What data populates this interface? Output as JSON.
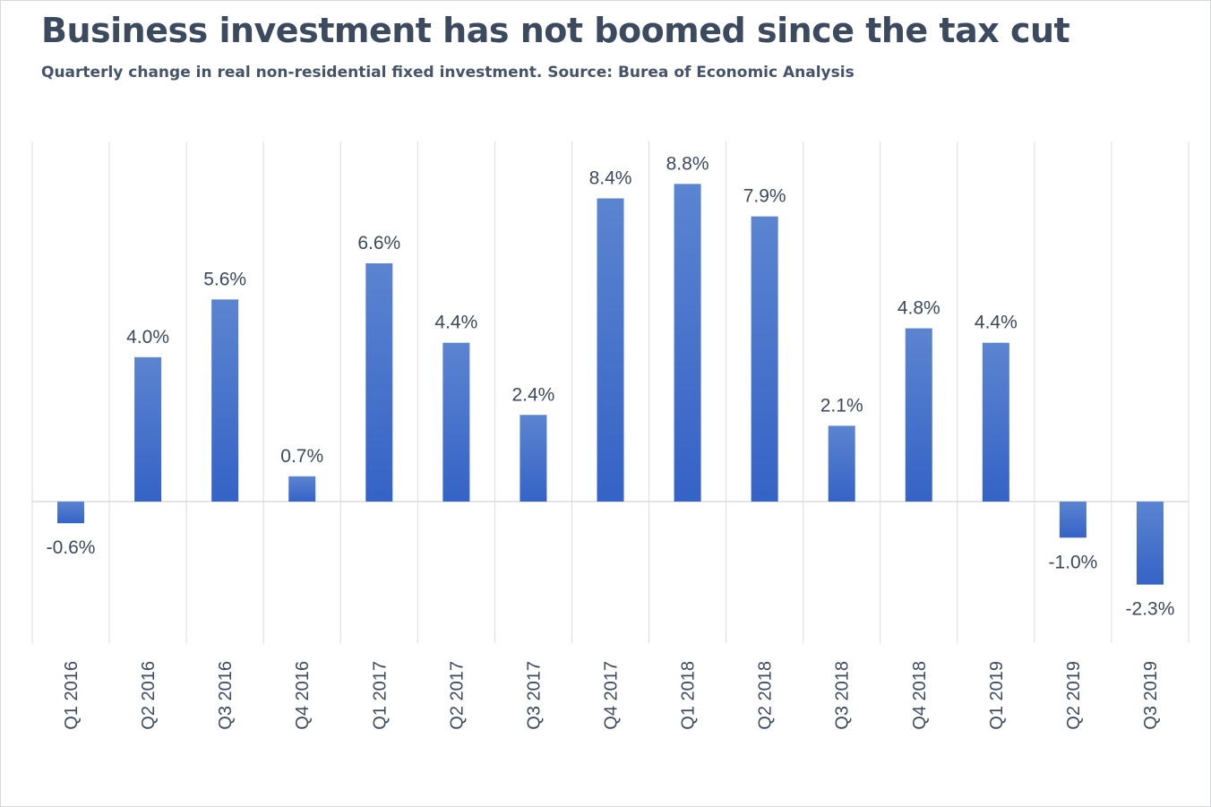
{
  "header": {
    "title": "Business investment has not boomed since the tax cut",
    "subtitle": "Quarterly change in real non-residential fixed investment. Source:  Burea of Economic Analysis"
  },
  "colors": {
    "bar_top": "#5b84d0",
    "bar_bottom": "#3563c6",
    "grid": "#d9dce3",
    "text": "#3b4a5e"
  },
  "chart_data": {
    "type": "bar",
    "title": "Business investment has not boomed since the tax cut",
    "subtitle": "Quarterly change in real non-residential fixed investment. Source:  Burea of Economic Analysis",
    "xlabel": "",
    "ylabel": "",
    "ylim": [
      -2.8,
      10.0
    ],
    "grid": "vertical category separators",
    "legend": "none",
    "categories": [
      "Q1 2016",
      "Q2 2016",
      "Q3 2016",
      "Q4 2016",
      "Q1 2017",
      "Q2 2017",
      "Q3 2017",
      "Q4 2017",
      "Q1 2018",
      "Q2 2018",
      "Q3 2018",
      "Q4 2018",
      "Q1 2019",
      "Q2 2019",
      "Q3 2019"
    ],
    "values": [
      -0.6,
      4.0,
      5.6,
      0.7,
      6.6,
      4.4,
      2.4,
      8.4,
      8.8,
      7.9,
      2.1,
      4.8,
      4.4,
      -1.0,
      -2.3
    ],
    "data_labels": [
      "-0.6%",
      "4.0%",
      "5.6%",
      "0.7%",
      "6.6%",
      "4.4%",
      "2.4%",
      "8.4%",
      "8.8%",
      "7.9%",
      "2.1%",
      "4.8%",
      "4.4%",
      "-1.0%",
      "-2.3%"
    ]
  }
}
